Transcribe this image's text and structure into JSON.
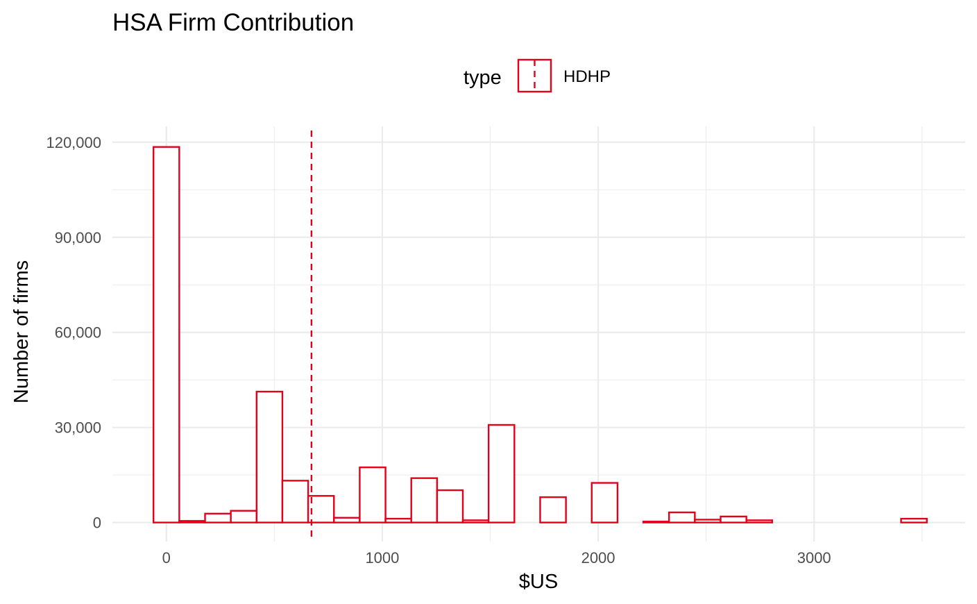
{
  "chart_data": {
    "type": "bar",
    "subtype": "histogram",
    "title": "HSA Firm Contribution",
    "xlabel": "$US",
    "ylabel": "Number of firms",
    "xlim": [
      -250,
      3700
    ],
    "ylim": [
      -6000,
      125000
    ],
    "x_ticks": [
      0,
      1000,
      2000,
      3000
    ],
    "x_tick_labels": [
      "0",
      "1000",
      "2000",
      "3000"
    ],
    "y_ticks": [
      0,
      30000,
      60000,
      90000,
      120000
    ],
    "y_tick_labels": [
      "0",
      "30,000",
      "60,000",
      "90,000",
      "120,000"
    ],
    "grid": true,
    "legend": {
      "title": "type",
      "position": "top",
      "entries": [
        "HDHP"
      ]
    },
    "color": "#e3001b",
    "bin_width": 119.4,
    "bins": [
      {
        "x": 0,
        "count": 118500
      },
      {
        "x": 119.4,
        "count": 500
      },
      {
        "x": 238.8,
        "count": 2800
      },
      {
        "x": 358.2,
        "count": 3700
      },
      {
        "x": 477.6,
        "count": 41300
      },
      {
        "x": 597.0,
        "count": 13200
      },
      {
        "x": 716.4,
        "count": 8400
      },
      {
        "x": 835.8,
        "count": 1500
      },
      {
        "x": 955.2,
        "count": 17400
      },
      {
        "x": 1074.6,
        "count": 1200
      },
      {
        "x": 1194.0,
        "count": 14000
      },
      {
        "x": 1313.4,
        "count": 10200
      },
      {
        "x": 1432.8,
        "count": 700
      },
      {
        "x": 1552.2,
        "count": 30800
      },
      {
        "x": 1671.6,
        "count": 0
      },
      {
        "x": 1791.0,
        "count": 8000
      },
      {
        "x": 1910.4,
        "count": 0
      },
      {
        "x": 2029.8,
        "count": 12500
      },
      {
        "x": 2149.2,
        "count": 0
      },
      {
        "x": 2268.6,
        "count": 300
      },
      {
        "x": 2388.0,
        "count": 3200
      },
      {
        "x": 2507.4,
        "count": 900
      },
      {
        "x": 2626.8,
        "count": 1900
      },
      {
        "x": 2746.2,
        "count": 700
      },
      {
        "x": 2865.6,
        "count": 0
      },
      {
        "x": 2985.0,
        "count": 0
      },
      {
        "x": 3104.4,
        "count": 0
      },
      {
        "x": 3223.8,
        "count": 0
      },
      {
        "x": 3343.2,
        "count": 0
      },
      {
        "x": 3462.6,
        "count": 1200
      }
    ],
    "mean_line_x": 672
  }
}
